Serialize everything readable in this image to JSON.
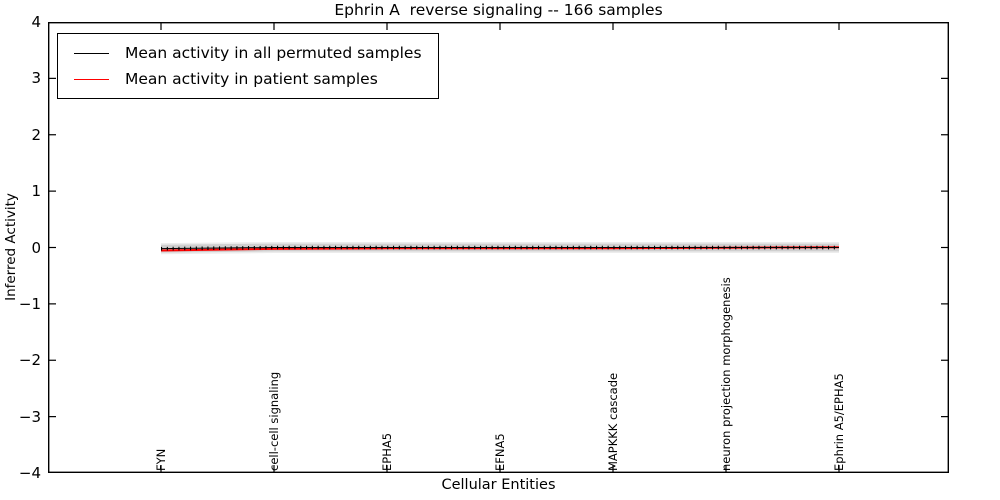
{
  "figure": {
    "title": "Ephrin A  reverse signaling -- 166 samples",
    "xlabel": "Cellular Entities",
    "ylabel": "Inferred Activity"
  },
  "legend": {
    "position": "upper left",
    "entries": [
      {
        "label": "Mean activity in all permuted samples",
        "color": "#000000",
        "thickness": 1.3
      },
      {
        "label": "Mean activity in patient samples",
        "color": "#ff0000",
        "thickness": 1.6
      }
    ]
  },
  "chart_data": {
    "type": "line",
    "title": "Ephrin A  reverse signaling -- 166 samples",
    "xlabel": "Cellular Entities",
    "ylabel": "Inferred Activity",
    "ylim": [
      -4,
      4
    ],
    "yticks": [
      4,
      3,
      2,
      1,
      0,
      -1,
      -2,
      -3,
      -4
    ],
    "grid": false,
    "legend_position": "upper left",
    "categories": [
      "FYN",
      "cell-cell signaling",
      "EPHA5",
      "EFNA5",
      "MAPKKK cascade",
      "neuron projection morphogenesis",
      "Ephrin A5/EPHA5"
    ],
    "series": [
      {
        "name": "Mean activity in all permuted samples",
        "color": "#000000",
        "marker": "vertical-tick",
        "values": [
          -0.02,
          0.0,
          0.0,
          0.0,
          0.0,
          0.0,
          0.0
        ]
      },
      {
        "name": "Mean activity in patient samples",
        "color": "#ff0000",
        "marker": "none",
        "values": [
          -0.05,
          -0.02,
          -0.01,
          -0.01,
          -0.01,
          0.0,
          0.01
        ]
      }
    ],
    "error_band": {
      "center_series": 0,
      "half_width": 0.07,
      "color": "#cfcfcf",
      "fringe_color": "#ececec"
    }
  }
}
